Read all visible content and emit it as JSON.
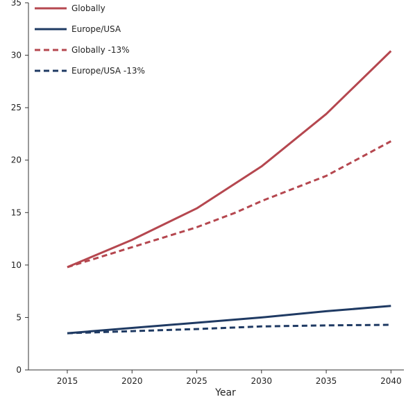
{
  "chart_data": {
    "type": "line",
    "title": "",
    "xlabel": "Year",
    "ylabel": "",
    "x": [
      2015,
      2020,
      2025,
      2030,
      2035,
      2040
    ],
    "xlim": [
      2012,
      2041
    ],
    "ylim": [
      0,
      35
    ],
    "xticks": [
      2015,
      2020,
      2025,
      2030,
      2035,
      2040
    ],
    "yticks": [
      0,
      5,
      10,
      15,
      20,
      25,
      30,
      35
    ],
    "grid": false,
    "legend_position": "top-left",
    "series": [
      {
        "name": "Globally",
        "color": "#b5474f",
        "style": "solid",
        "points": [
          [
            2015,
            9.8
          ],
          [
            2020,
            12.4
          ],
          [
            2025,
            15.4
          ],
          [
            2030,
            19.4
          ],
          [
            2035,
            24.4
          ],
          [
            2040,
            30.4
          ]
        ]
      },
      {
        "name": "Europe/USA",
        "color": "#1f3a63",
        "style": "solid",
        "points": [
          [
            2015,
            3.5
          ],
          [
            2020,
            4.0
          ],
          [
            2025,
            4.5
          ],
          [
            2030,
            5.0
          ],
          [
            2035,
            5.6
          ],
          [
            2040,
            6.1
          ]
        ]
      },
      {
        "name": "Globally -13%",
        "color": "#b5474f",
        "style": "dashed",
        "points": [
          [
            2015,
            9.8
          ],
          [
            2020,
            11.7
          ],
          [
            2025,
            13.6
          ],
          [
            2028,
            15.0
          ],
          [
            2030,
            16.1
          ],
          [
            2035,
            18.5
          ],
          [
            2040,
            21.8
          ]
        ]
      },
      {
        "name": "Europe/USA -13%",
        "color": "#1f3a63",
        "style": "dashed",
        "points": [
          [
            2015,
            3.5
          ],
          [
            2020,
            3.7
          ],
          [
            2025,
            3.9
          ],
          [
            2030,
            4.15
          ],
          [
            2035,
            4.25
          ],
          [
            2040,
            4.3
          ]
        ]
      }
    ]
  }
}
